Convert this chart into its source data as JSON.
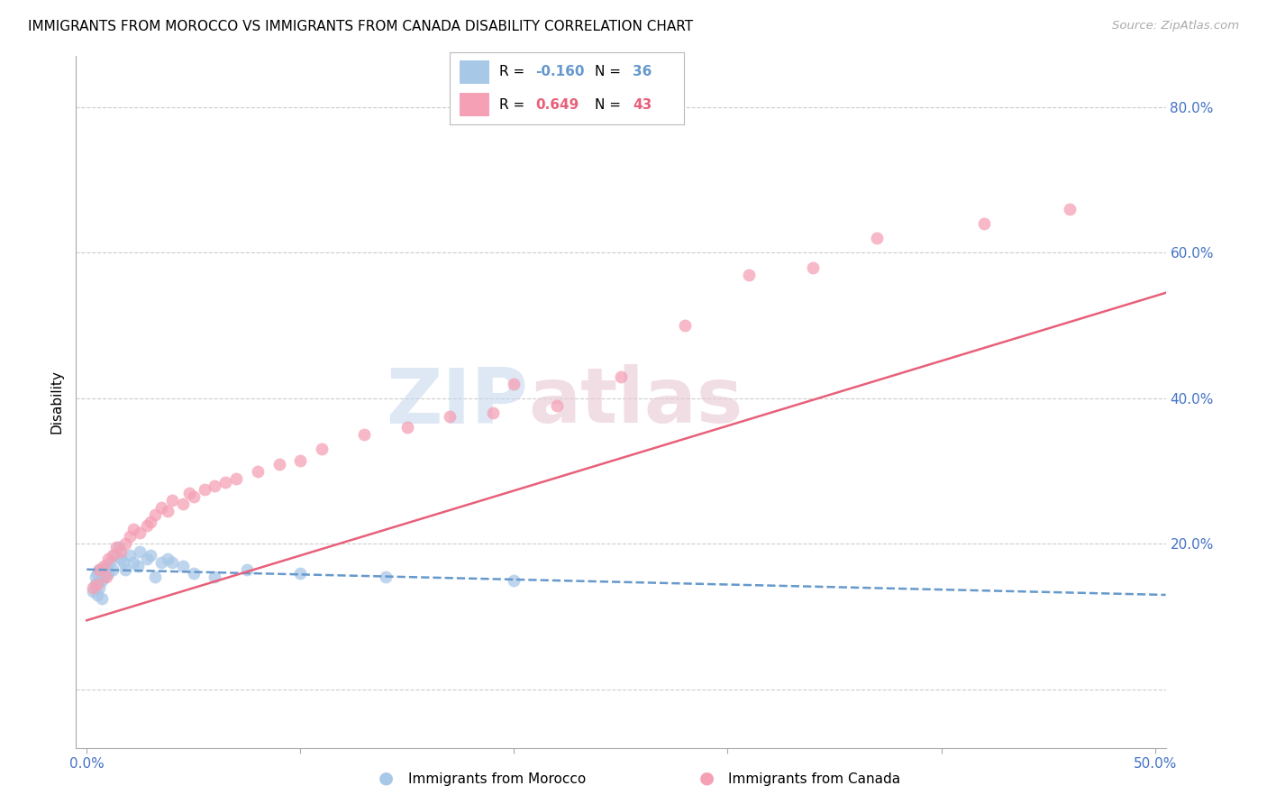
{
  "title": "IMMIGRANTS FROM MOROCCO VS IMMIGRANTS FROM CANADA DISABILITY CORRELATION CHART",
  "source": "Source: ZipAtlas.com",
  "ylabel": "Disability",
  "watermark_zip": "ZIP",
  "watermark_atlas": "atlas",
  "x_ticks": [
    0.0,
    0.1,
    0.2,
    0.3,
    0.4,
    0.5
  ],
  "x_tick_labels": [
    "0.0%",
    "",
    "",
    "",
    "",
    "50.0%"
  ],
  "y_ticks": [
    0.0,
    0.2,
    0.4,
    0.6,
    0.8
  ],
  "y_tick_labels": [
    "",
    "20.0%",
    "40.0%",
    "60.0%",
    "80.0%"
  ],
  "xlim": [
    -0.005,
    0.505
  ],
  "ylim": [
    -0.08,
    0.87
  ],
  "morocco_color": "#a8c8e8",
  "canada_color": "#f5a0b5",
  "morocco_R": -0.16,
  "morocco_N": 36,
  "canada_R": 0.649,
  "canada_N": 43,
  "morocco_line_color": "#6699cc",
  "canada_line_color": "#e8607a",
  "morocco_scatter_x": [
    0.003,
    0.004,
    0.004,
    0.005,
    0.005,
    0.006,
    0.006,
    0.007,
    0.007,
    0.008,
    0.009,
    0.01,
    0.011,
    0.012,
    0.013,
    0.015,
    0.016,
    0.017,
    0.018,
    0.02,
    0.022,
    0.024,
    0.025,
    0.028,
    0.03,
    0.032,
    0.035,
    0.038,
    0.04,
    0.045,
    0.05,
    0.06,
    0.075,
    0.1,
    0.14,
    0.2
  ],
  "morocco_scatter_y": [
    0.135,
    0.145,
    0.155,
    0.13,
    0.16,
    0.14,
    0.165,
    0.15,
    0.125,
    0.155,
    0.17,
    0.16,
    0.175,
    0.165,
    0.185,
    0.195,
    0.18,
    0.175,
    0.165,
    0.185,
    0.175,
    0.17,
    0.19,
    0.18,
    0.185,
    0.155,
    0.175,
    0.18,
    0.175,
    0.17,
    0.16,
    0.155,
    0.165,
    0.16,
    0.155,
    0.15
  ],
  "canada_scatter_x": [
    0.003,
    0.005,
    0.006,
    0.008,
    0.009,
    0.01,
    0.012,
    0.014,
    0.016,
    0.018,
    0.02,
    0.022,
    0.025,
    0.028,
    0.03,
    0.032,
    0.035,
    0.038,
    0.04,
    0.045,
    0.048,
    0.05,
    0.055,
    0.06,
    0.065,
    0.07,
    0.08,
    0.09,
    0.1,
    0.11,
    0.13,
    0.15,
    0.17,
    0.19,
    0.2,
    0.22,
    0.25,
    0.28,
    0.31,
    0.34,
    0.37,
    0.42,
    0.46
  ],
  "canada_scatter_y": [
    0.14,
    0.145,
    0.165,
    0.17,
    0.155,
    0.18,
    0.185,
    0.195,
    0.19,
    0.2,
    0.21,
    0.22,
    0.215,
    0.225,
    0.23,
    0.24,
    0.25,
    0.245,
    0.26,
    0.255,
    0.27,
    0.265,
    0.275,
    0.28,
    0.285,
    0.29,
    0.3,
    0.31,
    0.315,
    0.33,
    0.35,
    0.36,
    0.375,
    0.38,
    0.42,
    0.39,
    0.43,
    0.5,
    0.57,
    0.58,
    0.62,
    0.64,
    0.66
  ],
  "morocco_line_x0": 0.0,
  "morocco_line_y0": 0.165,
  "morocco_line_x1": 0.505,
  "morocco_line_y1": 0.13,
  "canada_line_x0": 0.0,
  "canada_line_y0": 0.095,
  "canada_line_x1": 0.505,
  "canada_line_y1": 0.545
}
